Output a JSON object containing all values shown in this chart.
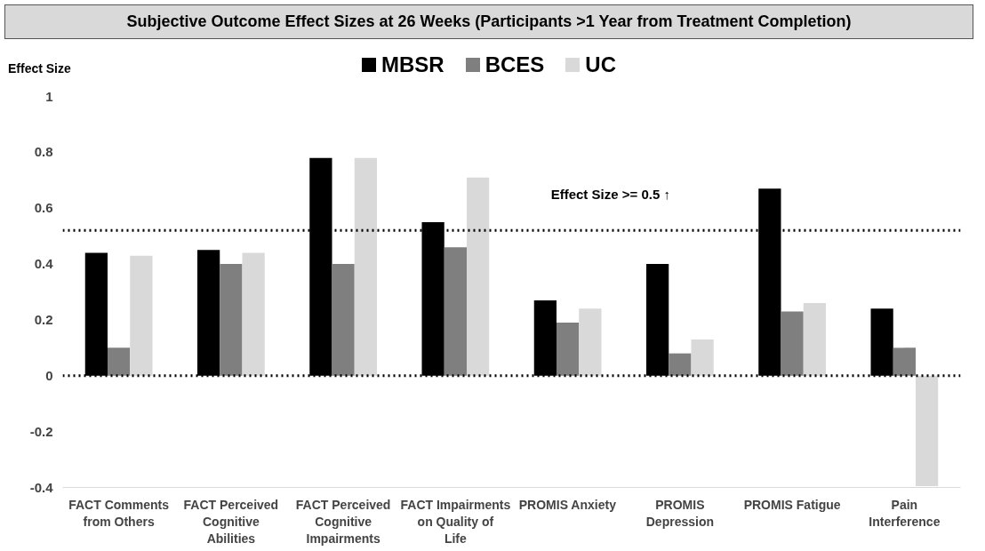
{
  "chart_data": {
    "type": "bar",
    "title": "Subjective Outcome Effect Sizes at 26 Weeks (Participants >1 Year from Treatment Completion)",
    "ylabel": "Effect Size",
    "categories": [
      "FACT Comments from Others",
      "FACT Perceived Cognitive Abilities",
      "FACT Perceived Cognitive Impairments",
      "FACT Impairments on Quality of Life",
      "PROMIS Anxiety",
      "PROMIS Depression",
      "PROMIS Fatigue",
      "Pain Interference"
    ],
    "series": [
      {
        "name": "MBSR",
        "color": "#000000",
        "values": [
          0.44,
          0.45,
          0.78,
          0.55,
          0.27,
          0.4,
          0.67,
          0.24
        ]
      },
      {
        "name": "BCES",
        "color": "#7f7f7f",
        "values": [
          0.1,
          0.4,
          0.4,
          0.46,
          0.19,
          0.08,
          0.23,
          0.1
        ]
      },
      {
        "name": "UC",
        "color": "#d9d9d9",
        "values": [
          0.43,
          0.44,
          0.78,
          0.71,
          0.24,
          0.13,
          0.26,
          -0.395
        ]
      }
    ],
    "ylim": [
      -0.4,
      1
    ],
    "yticks": [
      -0.4,
      -0.2,
      0,
      0.2,
      0.4,
      0.6,
      0.8,
      1
    ],
    "ref_lines": [
      {
        "axis": "y",
        "value": 0,
        "label": null,
        "color": "#000000",
        "line_style": "dotted"
      },
      {
        "axis": "y",
        "value": 0.52,
        "label": "Effect Size >= 0.5  ↑",
        "color": "#000000",
        "line_style": "dotted"
      }
    ],
    "grid": false,
    "legend": "top"
  }
}
